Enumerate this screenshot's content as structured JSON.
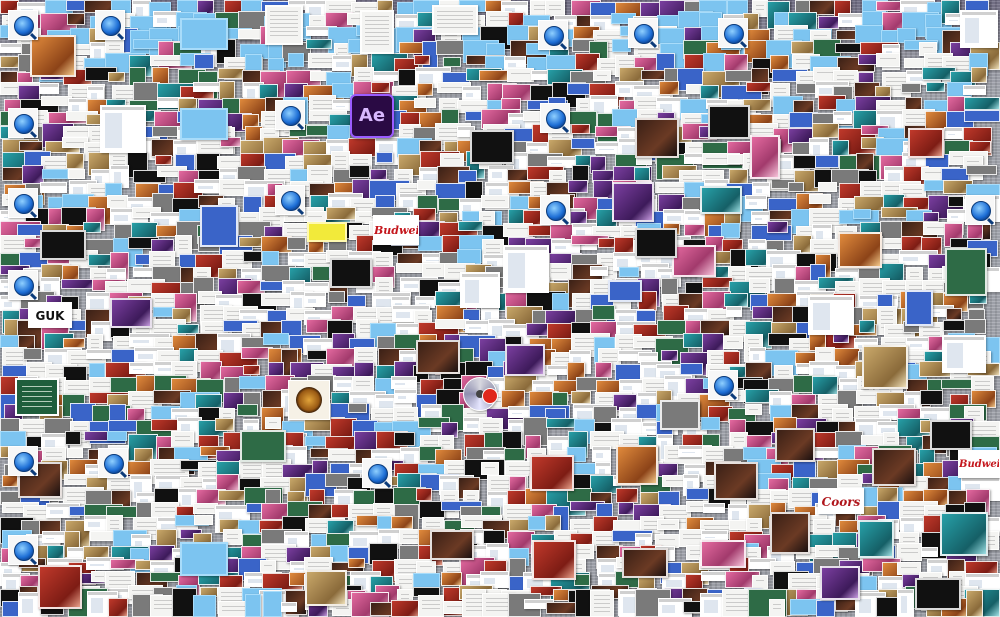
{
  "desktop": {
    "ae_icon_label": "Ae",
    "labeled_tiles": {
      "budweiser_1": "Budweiser",
      "budweiser_2": "Budweiser",
      "coors": "Coors",
      "guk": "GUK"
    },
    "quicktime_icon_count": 18
  },
  "colors": {
    "background_gray": "#9fa2aa",
    "sky_purple": "#6e6a82",
    "folder_blue": "#7cc4f0",
    "ae_purple": "#2a0a44",
    "ae_accent": "#9b5cff",
    "brand_red": "#c4161c"
  }
}
